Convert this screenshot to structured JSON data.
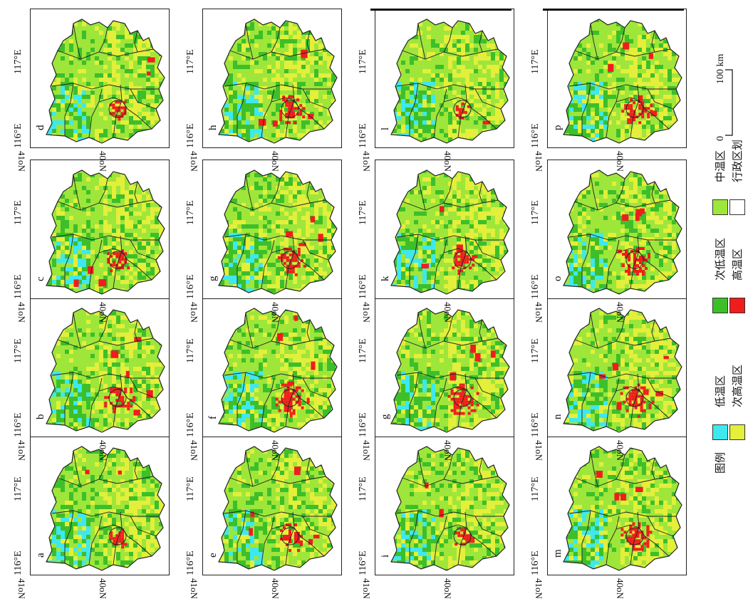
{
  "panels": [
    {
      "label": "a"
    },
    {
      "label": "b"
    },
    {
      "label": "c"
    },
    {
      "label": "d"
    },
    {
      "label": "e"
    },
    {
      "label": "f"
    },
    {
      "label": "g"
    },
    {
      "label": "h"
    },
    {
      "label": "i"
    },
    {
      "label": "g"
    },
    {
      "label": "k"
    },
    {
      "label": "l"
    },
    {
      "label": "m"
    },
    {
      "label": "n"
    },
    {
      "label": "o"
    },
    {
      "label": "p"
    }
  ],
  "axis": {
    "lat_top": "41oN",
    "lat_bottom": "40oN",
    "lon_left": "116°E",
    "lon_right": "117°E"
  },
  "legend": {
    "title": "图例",
    "items": [
      {
        "label": "低温区",
        "color": "#3ee8ef"
      },
      {
        "label": "次低温区",
        "color": "#3dbf2a"
      },
      {
        "label": "中温区",
        "color": "#9ee63a"
      },
      {
        "label": "次高温区",
        "color": "#e3ef3a"
      },
      {
        "label": "高温区",
        "color": "#f01d1d"
      },
      {
        "label": "行政区划",
        "color": "#ffffff"
      }
    ]
  },
  "scale": {
    "zero": "0",
    "end": "100 km"
  },
  "colors": {
    "low": "#3ee8ef",
    "sublow": "#3dbf2a",
    "mid": "#9ee63a",
    "subhigh": "#e3ef3a",
    "high": "#f01d1d",
    "border": "#222222"
  }
}
